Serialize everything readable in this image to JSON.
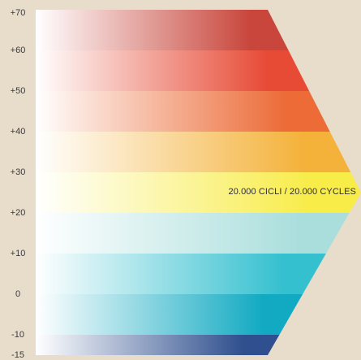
{
  "chart_data": {
    "type": "bar",
    "orientation": "horizontal",
    "y_ticks": [
      "+70",
      "+60",
      "+50",
      "+40",
      "+30",
      "+20",
      "+10",
      "0",
      "-10",
      "-15"
    ],
    "bands": [
      {
        "from": 60,
        "to": 70,
        "color": "#c8463c"
      },
      {
        "from": 50,
        "to": 60,
        "color": "#e74a35"
      },
      {
        "from": 40,
        "to": 50,
        "color": "#ec6b37"
      },
      {
        "from": 30,
        "to": 40,
        "color": "#f4b23a"
      },
      {
        "from": 20,
        "to": 30,
        "color": "#f8ec48"
      },
      {
        "from": 10,
        "to": 20,
        "color": "#a9dedc"
      },
      {
        "from": 0,
        "to": 10,
        "color": "#35c0cf"
      },
      {
        "from": -10,
        "to": 0,
        "color": "#12aac2"
      },
      {
        "from": -15,
        "to": -10,
        "color": "#2f4f8e"
      }
    ],
    "ylim": [
      -15,
      70
    ],
    "peak_value": 25,
    "annotation": "20.000 CICLI / 20.000 CYCLES",
    "background_color": "#e8dccb"
  }
}
